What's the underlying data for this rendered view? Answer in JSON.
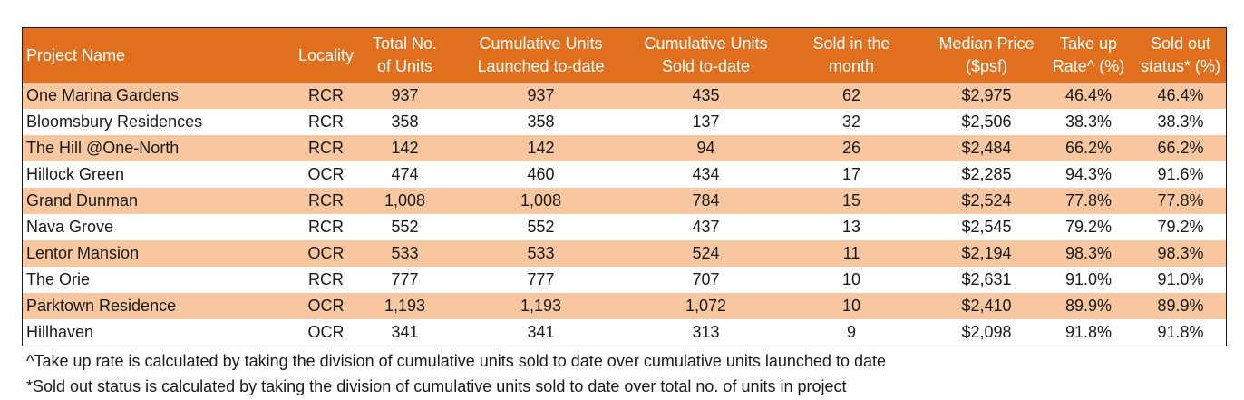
{
  "table": {
    "headers": [
      "Project Name",
      "Locality",
      "Total No.\nof Units",
      "Cumulative Units\nLaunched to-date",
      "Cumulative Units\nSold to-date",
      "Sold in the\nmonth",
      "Median Price\n($psf)",
      "Take up\nRate^ (%)",
      "Sold out\nstatus* (%)"
    ],
    "rows": [
      [
        "One Marina Gardens",
        "RCR",
        "937",
        "937",
        "435",
        "62",
        "$2,975",
        "46.4%",
        "46.4%"
      ],
      [
        "Bloomsbury Residences",
        "RCR",
        "358",
        "358",
        "137",
        "32",
        "$2,506",
        "38.3%",
        "38.3%"
      ],
      [
        "The Hill @One-North",
        "RCR",
        "142",
        "142",
        "94",
        "26",
        "$2,484",
        "66.2%",
        "66.2%"
      ],
      [
        "Hillock Green",
        "OCR",
        "474",
        "460",
        "434",
        "17",
        "$2,285",
        "94.3%",
        "91.6%"
      ],
      [
        "Grand Dunman",
        "RCR",
        "1,008",
        "1,008",
        "784",
        "15",
        "$2,524",
        "77.8%",
        "77.8%"
      ],
      [
        "Nava Grove",
        "RCR",
        "552",
        "552",
        "437",
        "13",
        "$2,545",
        "79.2%",
        "79.2%"
      ],
      [
        "Lentor Mansion",
        "OCR",
        "533",
        "533",
        "524",
        "11",
        "$2,194",
        "98.3%",
        "98.3%"
      ],
      [
        "The Orie",
        "RCR",
        "777",
        "777",
        "707",
        "10",
        "$2,631",
        "91.0%",
        "91.0%"
      ],
      [
        "Parktown Residence",
        "OCR",
        "1,193",
        "1,193",
        "1,072",
        "10",
        "$2,410",
        "89.9%",
        "89.9%"
      ],
      [
        "Hillhaven",
        "OCR",
        "341",
        "341",
        "313",
        "9",
        "$2,098",
        "91.8%",
        "91.8%"
      ]
    ]
  },
  "notes": {
    "take_up": "^Take up rate is calculated by taking the division of cumulative units sold to date over cumulative units launched to date",
    "sold_out": "*Sold out status is calculated by taking the division of cumulative units sold to date over total no. of units in project"
  },
  "colors": {
    "header_bg": "#e0701e",
    "header_text": "#ffffff",
    "band_row": "#f8c7a0",
    "plain_row": "#ffffff"
  }
}
